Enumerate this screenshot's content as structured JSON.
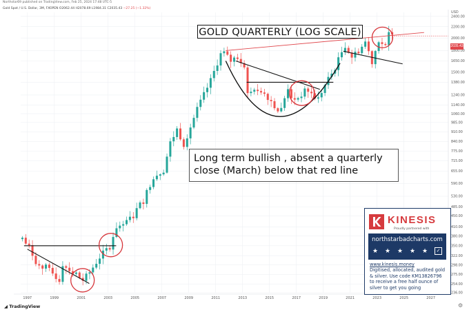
{
  "header": {
    "top": "Northstar69 published on TradingView.com, Feb 25, 2024 17:48 UTC-5",
    "symbol": "Gold Spot / U.S. Dollar, 3M, FXOPEN",
    "ohlc_up": "O2062.44  H2078.69  L1984.31  C2035.43",
    "ohlc_down": "−27.25 (−1.32%)"
  },
  "title": "GOLD QUARTERLY (LOG SCALE)",
  "annotation": {
    "line1": "Long term bullish , absent a quarterly",
    "line2": "close (March) below that red line"
  },
  "kinesis": {
    "brand": "KINESIS",
    "tagline": "Proudly partnered with",
    "url": "northstarbadcharts.com",
    "line1": "www.kinesis.money",
    "line2": "Digitised, allocated, audited gold",
    "line3": "& silver. Use code KM13826796",
    "line4": "to receive a free half ounce of",
    "line5": "silver to get you going"
  },
  "axis": {
    "currency": "USD",
    "last_price": "2035.43",
    "footer": "TradingView"
  },
  "colors": {
    "up": "#26a69a",
    "down": "#ef5350",
    "red_line": "#e0474c",
    "circle": "#d6353a",
    "brand_navy": "#1d3966",
    "brand_red": "#d63b3e"
  },
  "chart_data": {
    "type": "candlestick",
    "scale": "log",
    "interval": "3M",
    "y_ticks": [
      2400,
      2200,
      2000,
      1800,
      1650,
      1500,
      1380,
      1240,
      1140,
      1060,
      985,
      910,
      840,
      775,
      715,
      655,
      590,
      530,
      485,
      450,
      410,
      380,
      350,
      322,
      298,
      275,
      254,
      236
    ],
    "y_range": [
      236,
      2480
    ],
    "x_ticks": [
      "1997",
      "1999",
      "2001",
      "2003",
      "2005",
      "2007",
      "2009",
      "2011",
      "2013",
      "2015",
      "2017",
      "2019",
      "2021",
      "2023",
      "2025",
      "2027"
    ],
    "x_range": [
      1996.5,
      2028.3
    ],
    "grid": true,
    "anchors": [
      [
        1996.75,
        370
      ],
      [
        1997.25,
        345
      ],
      [
        1997.9,
        296
      ],
      [
        1998.5,
        292
      ],
      [
        1999.5,
        262
      ],
      [
        1999.75,
        300
      ],
      [
        2000.5,
        280
      ],
      [
        2001.25,
        262
      ],
      [
        2001.75,
        280
      ],
      [
        2002.5,
        318
      ],
      [
        2003.25,
        350
      ],
      [
        2003.75,
        410
      ],
      [
        2004.75,
        440
      ],
      [
        2005.75,
        515
      ],
      [
        2006.5,
        625
      ],
      [
        2007.25,
        660
      ],
      [
        2007.75,
        830
      ],
      [
        2008.25,
        930
      ],
      [
        2008.75,
        820
      ],
      [
        2009.75,
        1100
      ],
      [
        2010.75,
        1400
      ],
      [
        2011.6,
        1800
      ],
      [
        2012.25,
        1650
      ],
      [
        2012.75,
        1720
      ],
      [
        2013.25,
        1600
      ],
      [
        2013.5,
        1250
      ],
      [
        2014.5,
        1300
      ],
      [
        2015.25,
        1180
      ],
      [
        2015.9,
        1060
      ],
      [
        2016.5,
        1320
      ],
      [
        2016.9,
        1170
      ],
      [
        2017.9,
        1300
      ],
      [
        2018.7,
        1190
      ],
      [
        2019.5,
        1420
      ],
      [
        2019.9,
        1520
      ],
      [
        2020.5,
        1780
      ],
      [
        2020.75,
        1880
      ],
      [
        2021.25,
        1710
      ],
      [
        2021.9,
        1830
      ],
      [
        2022.25,
        1940
      ],
      [
        2022.75,
        1640
      ],
      [
        2023.25,
        1970
      ],
      [
        2023.75,
        1850
      ],
      [
        2023.99,
        2070
      ],
      [
        2024.1,
        2035
      ]
    ],
    "trendlines": [
      {
        "color": "red",
        "from": [
          2011.75,
          1800
        ],
        "to": [
          2026.5,
          2095
        ]
      },
      {
        "color": "black",
        "from": [
          2013.3,
          1380
        ],
        "to": [
          2019.75,
          1380
        ]
      },
      {
        "color": "black",
        "from": [
          2012.5,
          1650
        ],
        "to": [
          2018.75,
          1300
        ]
      },
      {
        "color": "black",
        "from": [
          2020.5,
          1790
        ],
        "to": [
          2024.9,
          1610
        ]
      },
      {
        "color": "black",
        "from": [
          1996.75,
          350
        ],
        "to": [
          2003.6,
          350
        ]
      },
      {
        "color": "black",
        "from": [
          1997.0,
          340
        ],
        "to": [
          2001.6,
          255
        ]
      }
    ],
    "arc": {
      "color": "black",
      "left": [
        2011.75,
        1650
      ],
      "bottom": [
        2015.75,
        1035
      ],
      "right": [
        2020.25,
        1620
      ]
    },
    "circles": [
      {
        "center": [
          2001.1,
          262
        ],
        "r": 17
      },
      {
        "center": [
          2003.2,
          352
        ],
        "r": 17
      },
      {
        "center": [
          2017.4,
          1260
        ],
        "r": 18
      },
      {
        "center": [
          2023.4,
          2010
        ],
        "r": 15
      }
    ]
  }
}
